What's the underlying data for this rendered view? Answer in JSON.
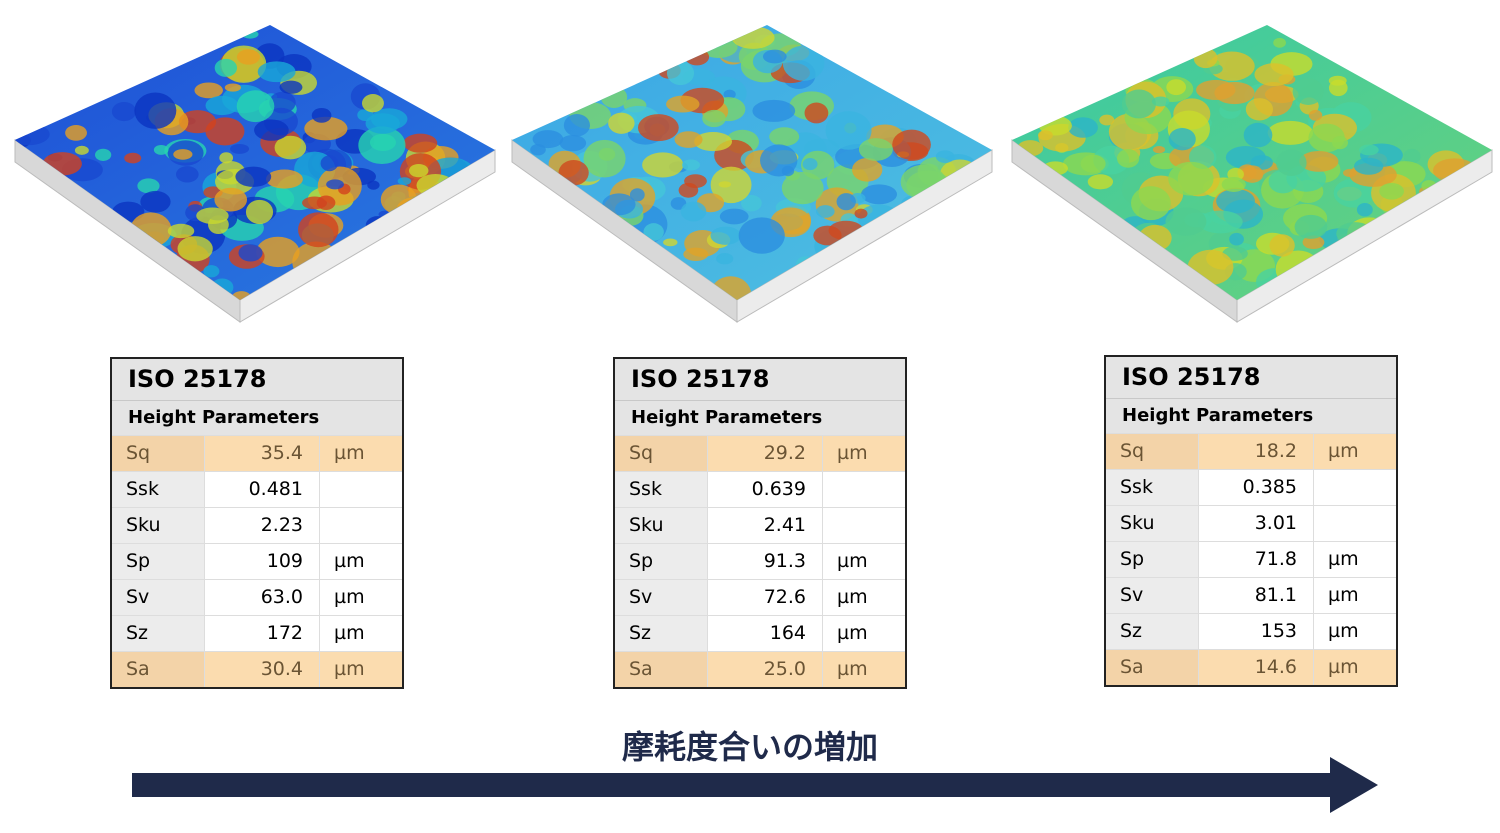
{
  "panels": [
    {
      "title": "ISO 25178",
      "subtitle": "Height Parameters",
      "rows": [
        {
          "param": "Sq",
          "value": "35.4",
          "unit": "µm",
          "highlight": true
        },
        {
          "param": "Ssk",
          "value": "0.481"
        },
        {
          "param": "Sku",
          "value": "2.23"
        },
        {
          "param": "Sp",
          "value": "109",
          "unit": "µm"
        },
        {
          "param": "Sv",
          "value": "63.0",
          "unit": "µm"
        },
        {
          "param": "Sz",
          "value": "172",
          "unit": "µm"
        },
        {
          "param": "Sa",
          "value": "30.4",
          "unit": "µm",
          "highlight": true
        }
      ]
    },
    {
      "title": "ISO 25178",
      "subtitle": "Height Parameters",
      "rows": [
        {
          "param": "Sq",
          "value": "29.2",
          "unit": "µm",
          "highlight": true
        },
        {
          "param": "Ssk",
          "value": "0.639"
        },
        {
          "param": "Sku",
          "value": "2.41"
        },
        {
          "param": "Sp",
          "value": "91.3",
          "unit": "µm"
        },
        {
          "param": "Sv",
          "value": "72.6",
          "unit": "µm"
        },
        {
          "param": "Sz",
          "value": "164",
          "unit": "µm"
        },
        {
          "param": "Sa",
          "value": "25.0",
          "unit": "µm",
          "highlight": true
        }
      ]
    },
    {
      "title": "ISO 25178",
      "subtitle": "Height Parameters",
      "rows": [
        {
          "param": "Sq",
          "value": "18.2",
          "unit": "µm",
          "highlight": true
        },
        {
          "param": "Ssk",
          "value": "0.385"
        },
        {
          "param": "Sku",
          "value": "3.01"
        },
        {
          "param": "Sp",
          "value": "71.8",
          "unit": "µm"
        },
        {
          "param": "Sv",
          "value": "81.1",
          "unit": "µm"
        },
        {
          "param": "Sz",
          "value": "153",
          "unit": "µm"
        },
        {
          "param": "Sa",
          "value": "14.6",
          "unit": "µm",
          "highlight": true
        }
      ]
    }
  ],
  "caption": "摩耗度合いの増加"
}
